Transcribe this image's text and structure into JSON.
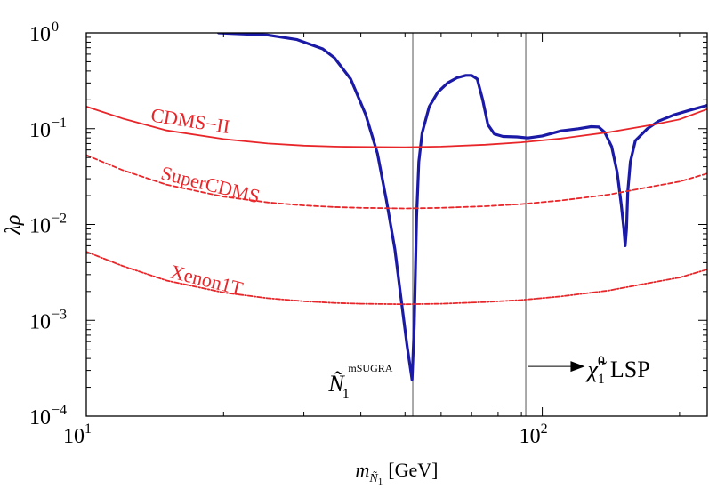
{
  "chart_data": {
    "type": "line",
    "title": "",
    "xscale": "log",
    "yscale": "log",
    "xlim": [
      10,
      230
    ],
    "ylim": [
      0.0001,
      1
    ],
    "xlabel": {
      "main": "m",
      "sub1": "Ñ",
      "sub2": "1",
      "unit": "[GeV]"
    },
    "ylabel": "λρ",
    "x_ticks": [
      {
        "value": 10,
        "base": "10",
        "exp": "1"
      },
      {
        "value": 100,
        "base": "10",
        "exp": "2"
      }
    ],
    "y_ticks": [
      {
        "value": 1,
        "base": "10",
        "exp": "0"
      },
      {
        "value": 0.1,
        "base": "10",
        "exp": "−1"
      },
      {
        "value": 0.01,
        "base": "10",
        "exp": "−2"
      },
      {
        "value": 0.001,
        "base": "10",
        "exp": "−3"
      },
      {
        "value": 0.0001,
        "base": "10",
        "exp": "−4"
      }
    ],
    "series": [
      {
        "color": "#1a1aa6",
        "style": "solid",
        "points": [
          [
            19.5,
            1.0
          ],
          [
            25,
            0.95
          ],
          [
            29,
            0.85
          ],
          [
            33,
            0.68
          ],
          [
            35,
            0.55
          ],
          [
            38,
            0.33
          ],
          [
            41,
            0.14
          ],
          [
            43.5,
            0.055
          ],
          [
            45.5,
            0.018
          ],
          [
            47.5,
            0.0055
          ],
          [
            49,
            0.0017
          ],
          [
            50.5,
            0.00055
          ],
          [
            51.8,
            0.00024
          ],
          [
            52.4,
            0.0009
          ],
          [
            53,
            0.012
          ],
          [
            53.6,
            0.045
          ],
          [
            54.5,
            0.09
          ],
          [
            56.5,
            0.17
          ],
          [
            59,
            0.24
          ],
          [
            62,
            0.3
          ],
          [
            65,
            0.34
          ],
          [
            68,
            0.36
          ],
          [
            70,
            0.36
          ],
          [
            72,
            0.33
          ],
          [
            74,
            0.2
          ],
          [
            76,
            0.11
          ],
          [
            78.5,
            0.088
          ],
          [
            82,
            0.083
          ],
          [
            88,
            0.082
          ],
          [
            93,
            0.08
          ],
          [
            100,
            0.084
          ],
          [
            110,
            0.095
          ],
          [
            120,
            0.1
          ],
          [
            128,
            0.105
          ],
          [
            133,
            0.104
          ],
          [
            137,
            0.092
          ],
          [
            142,
            0.065
          ],
          [
            146,
            0.035
          ],
          [
            149,
            0.016
          ],
          [
            151,
            0.009
          ],
          [
            152,
            0.006
          ],
          [
            153,
            0.009
          ],
          [
            154,
            0.022
          ],
          [
            156,
            0.045
          ],
          [
            160,
            0.075
          ],
          [
            170,
            0.1
          ],
          [
            180,
            0.12
          ],
          [
            195,
            0.14
          ],
          [
            210,
            0.155
          ],
          [
            230,
            0.175
          ]
        ]
      },
      {
        "name": "CDMS−II",
        "color": "#e8262a",
        "style": "solid",
        "points": [
          [
            10,
            0.17
          ],
          [
            12,
            0.128
          ],
          [
            15,
            0.096
          ],
          [
            20,
            0.078
          ],
          [
            25,
            0.07
          ],
          [
            30,
            0.0665
          ],
          [
            35,
            0.065
          ],
          [
            40,
            0.0645
          ],
          [
            50,
            0.064
          ],
          [
            60,
            0.065
          ],
          [
            75,
            0.068
          ],
          [
            90,
            0.072
          ],
          [
            110,
            0.079
          ],
          [
            140,
            0.092
          ],
          [
            175,
            0.11
          ],
          [
            200,
            0.125
          ],
          [
            230,
            0.16
          ]
        ]
      },
      {
        "name": "SuperCDMS",
        "color": "#e8262a",
        "style": "dashed",
        "points": [
          [
            10,
            0.053
          ],
          [
            12,
            0.037
          ],
          [
            15,
            0.026
          ],
          [
            20,
            0.0195
          ],
          [
            25,
            0.017
          ],
          [
            30,
            0.0158
          ],
          [
            35,
            0.0152
          ],
          [
            40,
            0.0149
          ],
          [
            50,
            0.0147
          ],
          [
            60,
            0.0149
          ],
          [
            75,
            0.0155
          ],
          [
            90,
            0.0163
          ],
          [
            110,
            0.0178
          ],
          [
            140,
            0.0205
          ],
          [
            175,
            0.025
          ],
          [
            200,
            0.028
          ],
          [
            230,
            0.034
          ]
        ]
      },
      {
        "name": "Xenon1T",
        "color": "#e8262a",
        "style": "dashdot",
        "points": [
          [
            10,
            0.0052
          ],
          [
            12,
            0.0037
          ],
          [
            15,
            0.0026
          ],
          [
            20,
            0.00195
          ],
          [
            25,
            0.0017
          ],
          [
            30,
            0.00158
          ],
          [
            35,
            0.00152
          ],
          [
            40,
            0.00149
          ],
          [
            50,
            0.00147
          ],
          [
            60,
            0.00149
          ],
          [
            75,
            0.00155
          ],
          [
            90,
            0.00163
          ],
          [
            110,
            0.00178
          ],
          [
            140,
            0.00205
          ],
          [
            175,
            0.0025
          ],
          [
            200,
            0.0028
          ],
          [
            230,
            0.0034
          ]
        ]
      }
    ],
    "vertical_lines": [
      52,
      92
    ],
    "series_labels": [
      {
        "text": "CDMS−II",
        "x": 13.8,
        "y": 0.12,
        "rotate": 9
      },
      {
        "text": "SuperCDMS",
        "x": 14.5,
        "y": 0.03,
        "rotate": 14
      },
      {
        "text": "Xenon1T",
        "x": 15.2,
        "y": 0.0028,
        "rotate": 14
      }
    ],
    "annotations": [
      {
        "id": "mSUGRA",
        "x": 34,
        "y": 0.00028,
        "main": "Ñ",
        "sub": "1",
        "sup": "mSUGRA"
      },
      {
        "id": "lsp",
        "x": 93,
        "y": 0.00033,
        "arrow_to": 124,
        "main": "χ̃",
        "sub": "1",
        "sup": "0",
        "suffix": "LSP"
      }
    ],
    "grid": false,
    "legend": "none"
  }
}
